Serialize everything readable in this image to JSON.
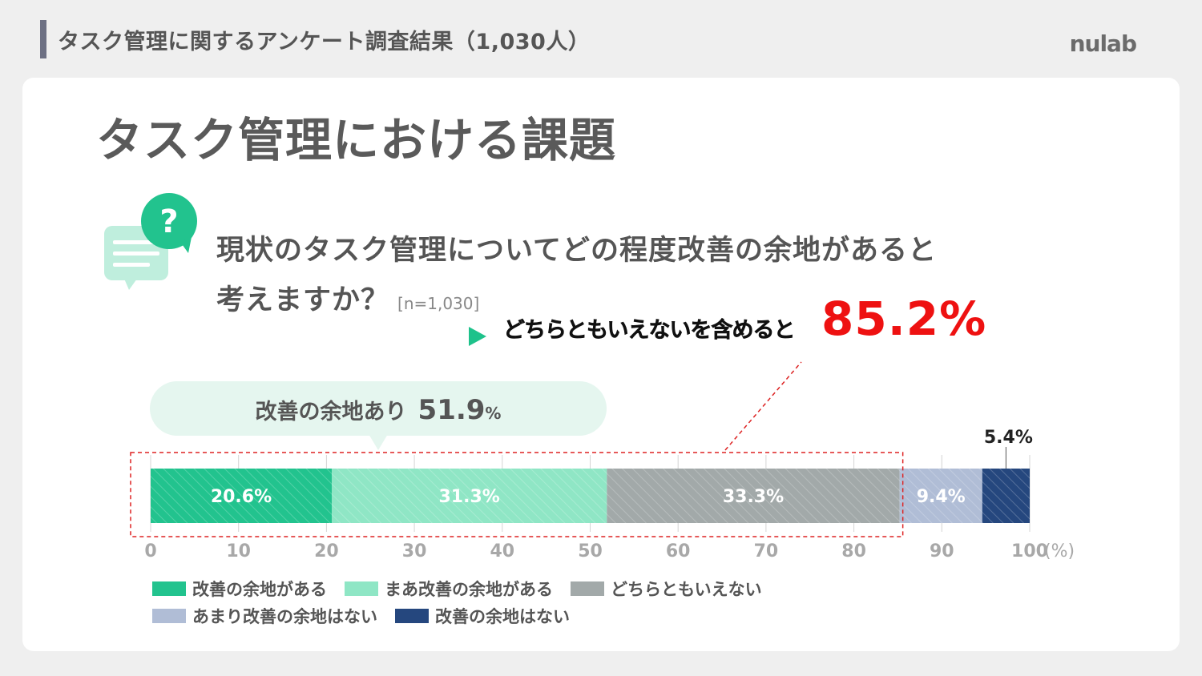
{
  "header": {
    "title": "タスク管理に関するアンケート調査結果（1,030人）",
    "brand": "nulab"
  },
  "page_title": "タスク管理における課題",
  "question": {
    "line1": "現状のタスク管理についてどの程度改善の余地があると",
    "line2": "考えますか？",
    "sample_size": "[n=1,030]"
  },
  "highlight": {
    "label": "どちらともいえないを含めると",
    "value": "85.2%"
  },
  "bubble": {
    "label": "改善の余地あり",
    "value": "51.9",
    "unit": "%"
  },
  "icons": {
    "question_bubble": "question-chat-icon",
    "arrow": "play-arrow-icon"
  },
  "chart_data": {
    "type": "bar",
    "orientation": "horizontal-stacked",
    "categories": [
      "改善の余地がある",
      "まあ改善の余地がある",
      "どちらともいえない",
      "あまり改善の余地はない",
      "改善の余地はない"
    ],
    "values": [
      20.6,
      31.3,
      33.3,
      9.4,
      5.4
    ],
    "data_labels": [
      "20.6%",
      "31.3%",
      "33.3%",
      "9.4%",
      "5.4%"
    ],
    "colors": [
      "#22c38e",
      "#8fe6c5",
      "#a2a9a9",
      "#b0bdd6",
      "#25477e"
    ],
    "xlim": [
      0,
      100
    ],
    "x_ticks": [
      0,
      10,
      20,
      30,
      40,
      50,
      60,
      70,
      80,
      90,
      100
    ],
    "x_unit": "(%)",
    "grid": true,
    "legend_position": "bottom-left"
  }
}
